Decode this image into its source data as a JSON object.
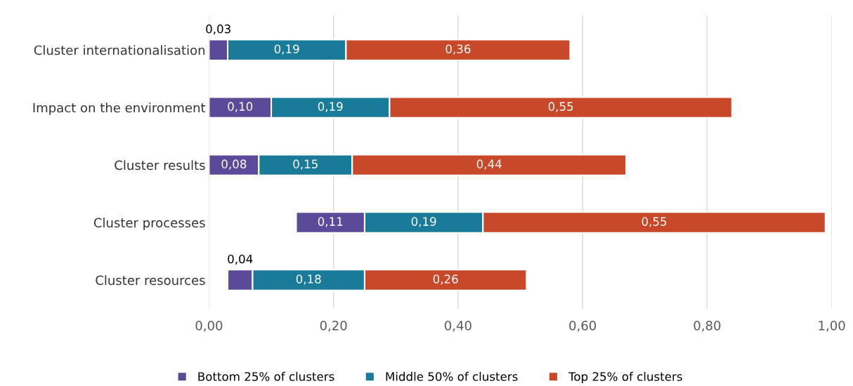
{
  "chart_data": {
    "type": "bar",
    "orientation": "horizontal",
    "stacked": true,
    "categories": [
      "Cluster internationalisation",
      "Impact on the environment",
      "Cluster results",
      "Cluster processes",
      "Cluster resources"
    ],
    "series": [
      {
        "name": "Bottom 25% of clusters",
        "color": "#5b4a9a",
        "base": [
          0,
          0,
          0,
          0.14,
          0.03
        ],
        "values": [
          0.03,
          0.1,
          0.08,
          0.11,
          0.04
        ],
        "value_labels": [
          "0,03",
          "0,10",
          "0,08",
          "0,11",
          "0,04"
        ]
      },
      {
        "name": "Middle 50% of clusters",
        "color": "#1a7a9a",
        "values": [
          0.19,
          0.19,
          0.15,
          0.19,
          0.18
        ],
        "value_labels": [
          "0,19",
          "0,19",
          "0,15",
          "0,19",
          "0,18"
        ]
      },
      {
        "name": "Top 25% of clusters",
        "color": "#c8492a",
        "values": [
          0.36,
          0.55,
          0.44,
          0.55,
          0.26
        ],
        "value_labels": [
          "0,36",
          "0,55",
          "0,44",
          "0,55",
          "0,26"
        ]
      }
    ],
    "xlim": [
      0,
      1.0
    ],
    "xticks": [
      {
        "value": 0,
        "label": "0,00"
      },
      {
        "value": 0.2,
        "label": "0,20"
      },
      {
        "value": 0.4,
        "label": "0,40"
      },
      {
        "value": 0.6,
        "label": "0,60"
      },
      {
        "value": 0.8,
        "label": "0,80"
      },
      {
        "value": 1.0,
        "label": "1,00"
      }
    ],
    "grid": "x",
    "legend": "bottom",
    "marker": "square"
  }
}
